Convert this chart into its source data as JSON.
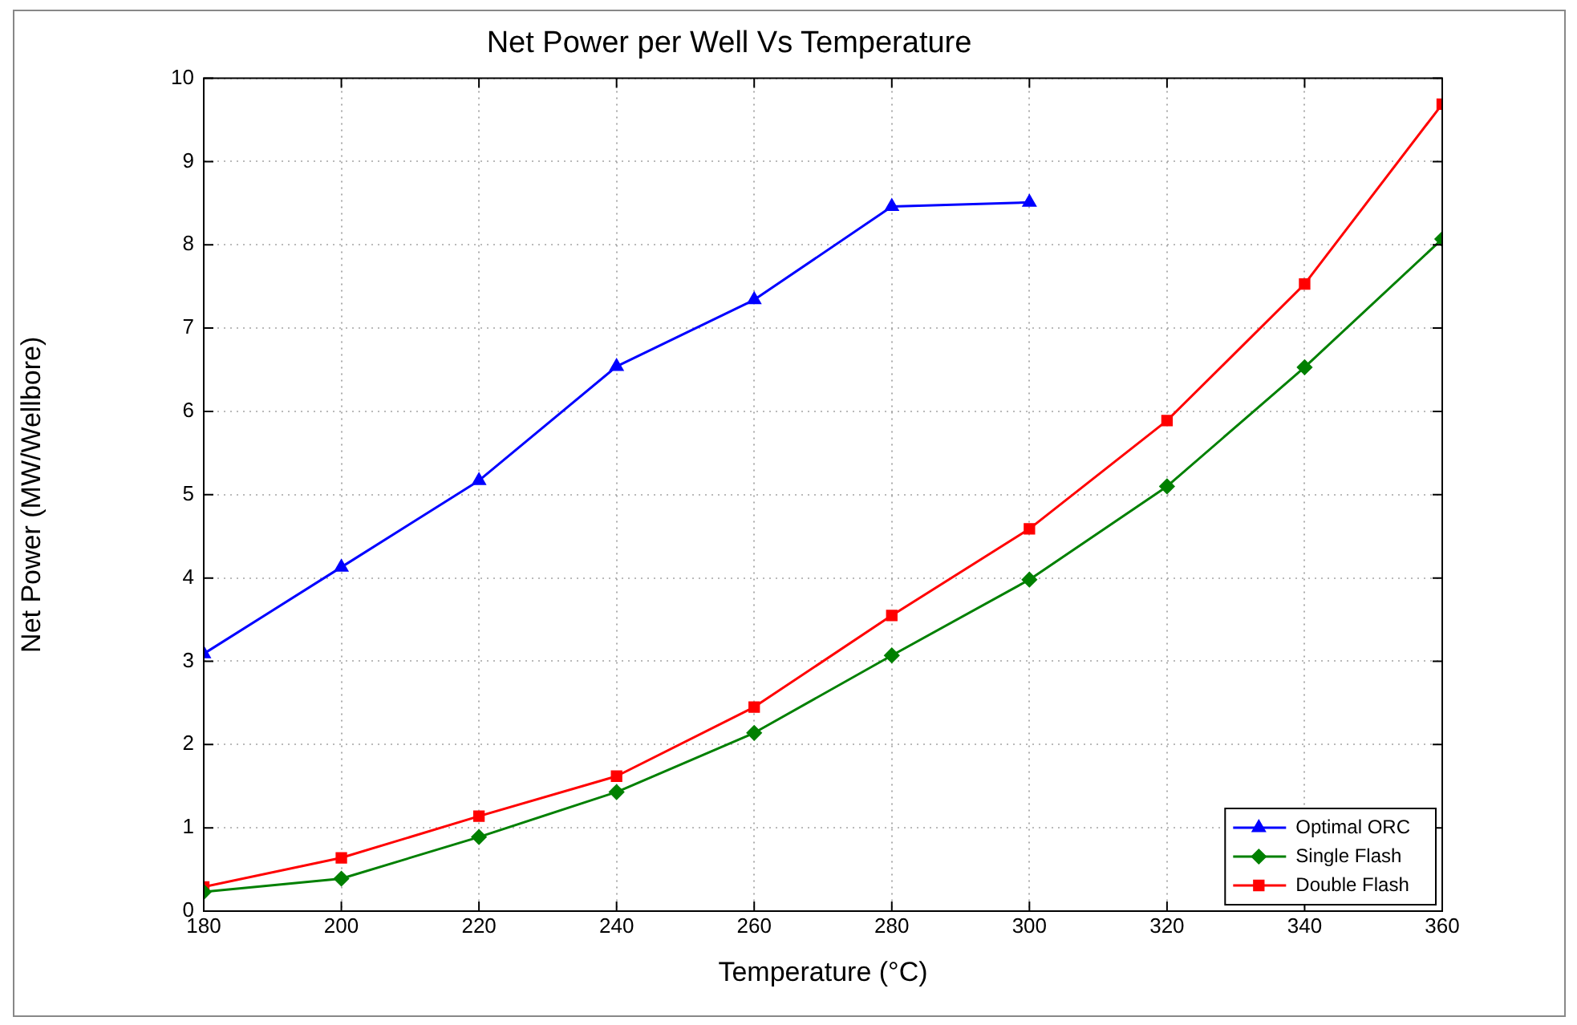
{
  "chart_data": {
    "type": "line",
    "title": "Net Power per Well Vs Temperature",
    "xlabel": "Temperature (°C)",
    "ylabel": "Net Power (MW/Wellbore)",
    "x": [
      180,
      200,
      220,
      240,
      260,
      280,
      300,
      320,
      340,
      360
    ],
    "series": [
      {
        "name": "Optimal ORC",
        "color": "#0000ff",
        "marker": "triangle",
        "values": [
          3.09,
          4.13,
          5.17,
          6.54,
          7.34,
          8.46,
          8.51,
          null,
          null,
          null
        ]
      },
      {
        "name": "Single Flash",
        "color": "#008000",
        "marker": "diamond",
        "values": [
          0.23,
          0.39,
          0.89,
          1.43,
          2.14,
          3.07,
          3.98,
          5.1,
          6.53,
          8.07
        ]
      },
      {
        "name": "Double Flash",
        "color": "#ff0000",
        "marker": "square",
        "values": [
          0.29,
          0.64,
          1.14,
          1.62,
          2.45,
          3.55,
          4.59,
          5.89,
          7.53,
          9.69
        ]
      }
    ],
    "xlim": [
      180,
      360
    ],
    "xticks": [
      180,
      200,
      220,
      240,
      260,
      280,
      300,
      320,
      340,
      360
    ],
    "ylim": [
      0,
      10
    ],
    "yticks": [
      0,
      1,
      2,
      3,
      4,
      5,
      6,
      7,
      8,
      9,
      10
    ],
    "grid": true,
    "legend": "bottom right",
    "line_style": "solid"
  }
}
